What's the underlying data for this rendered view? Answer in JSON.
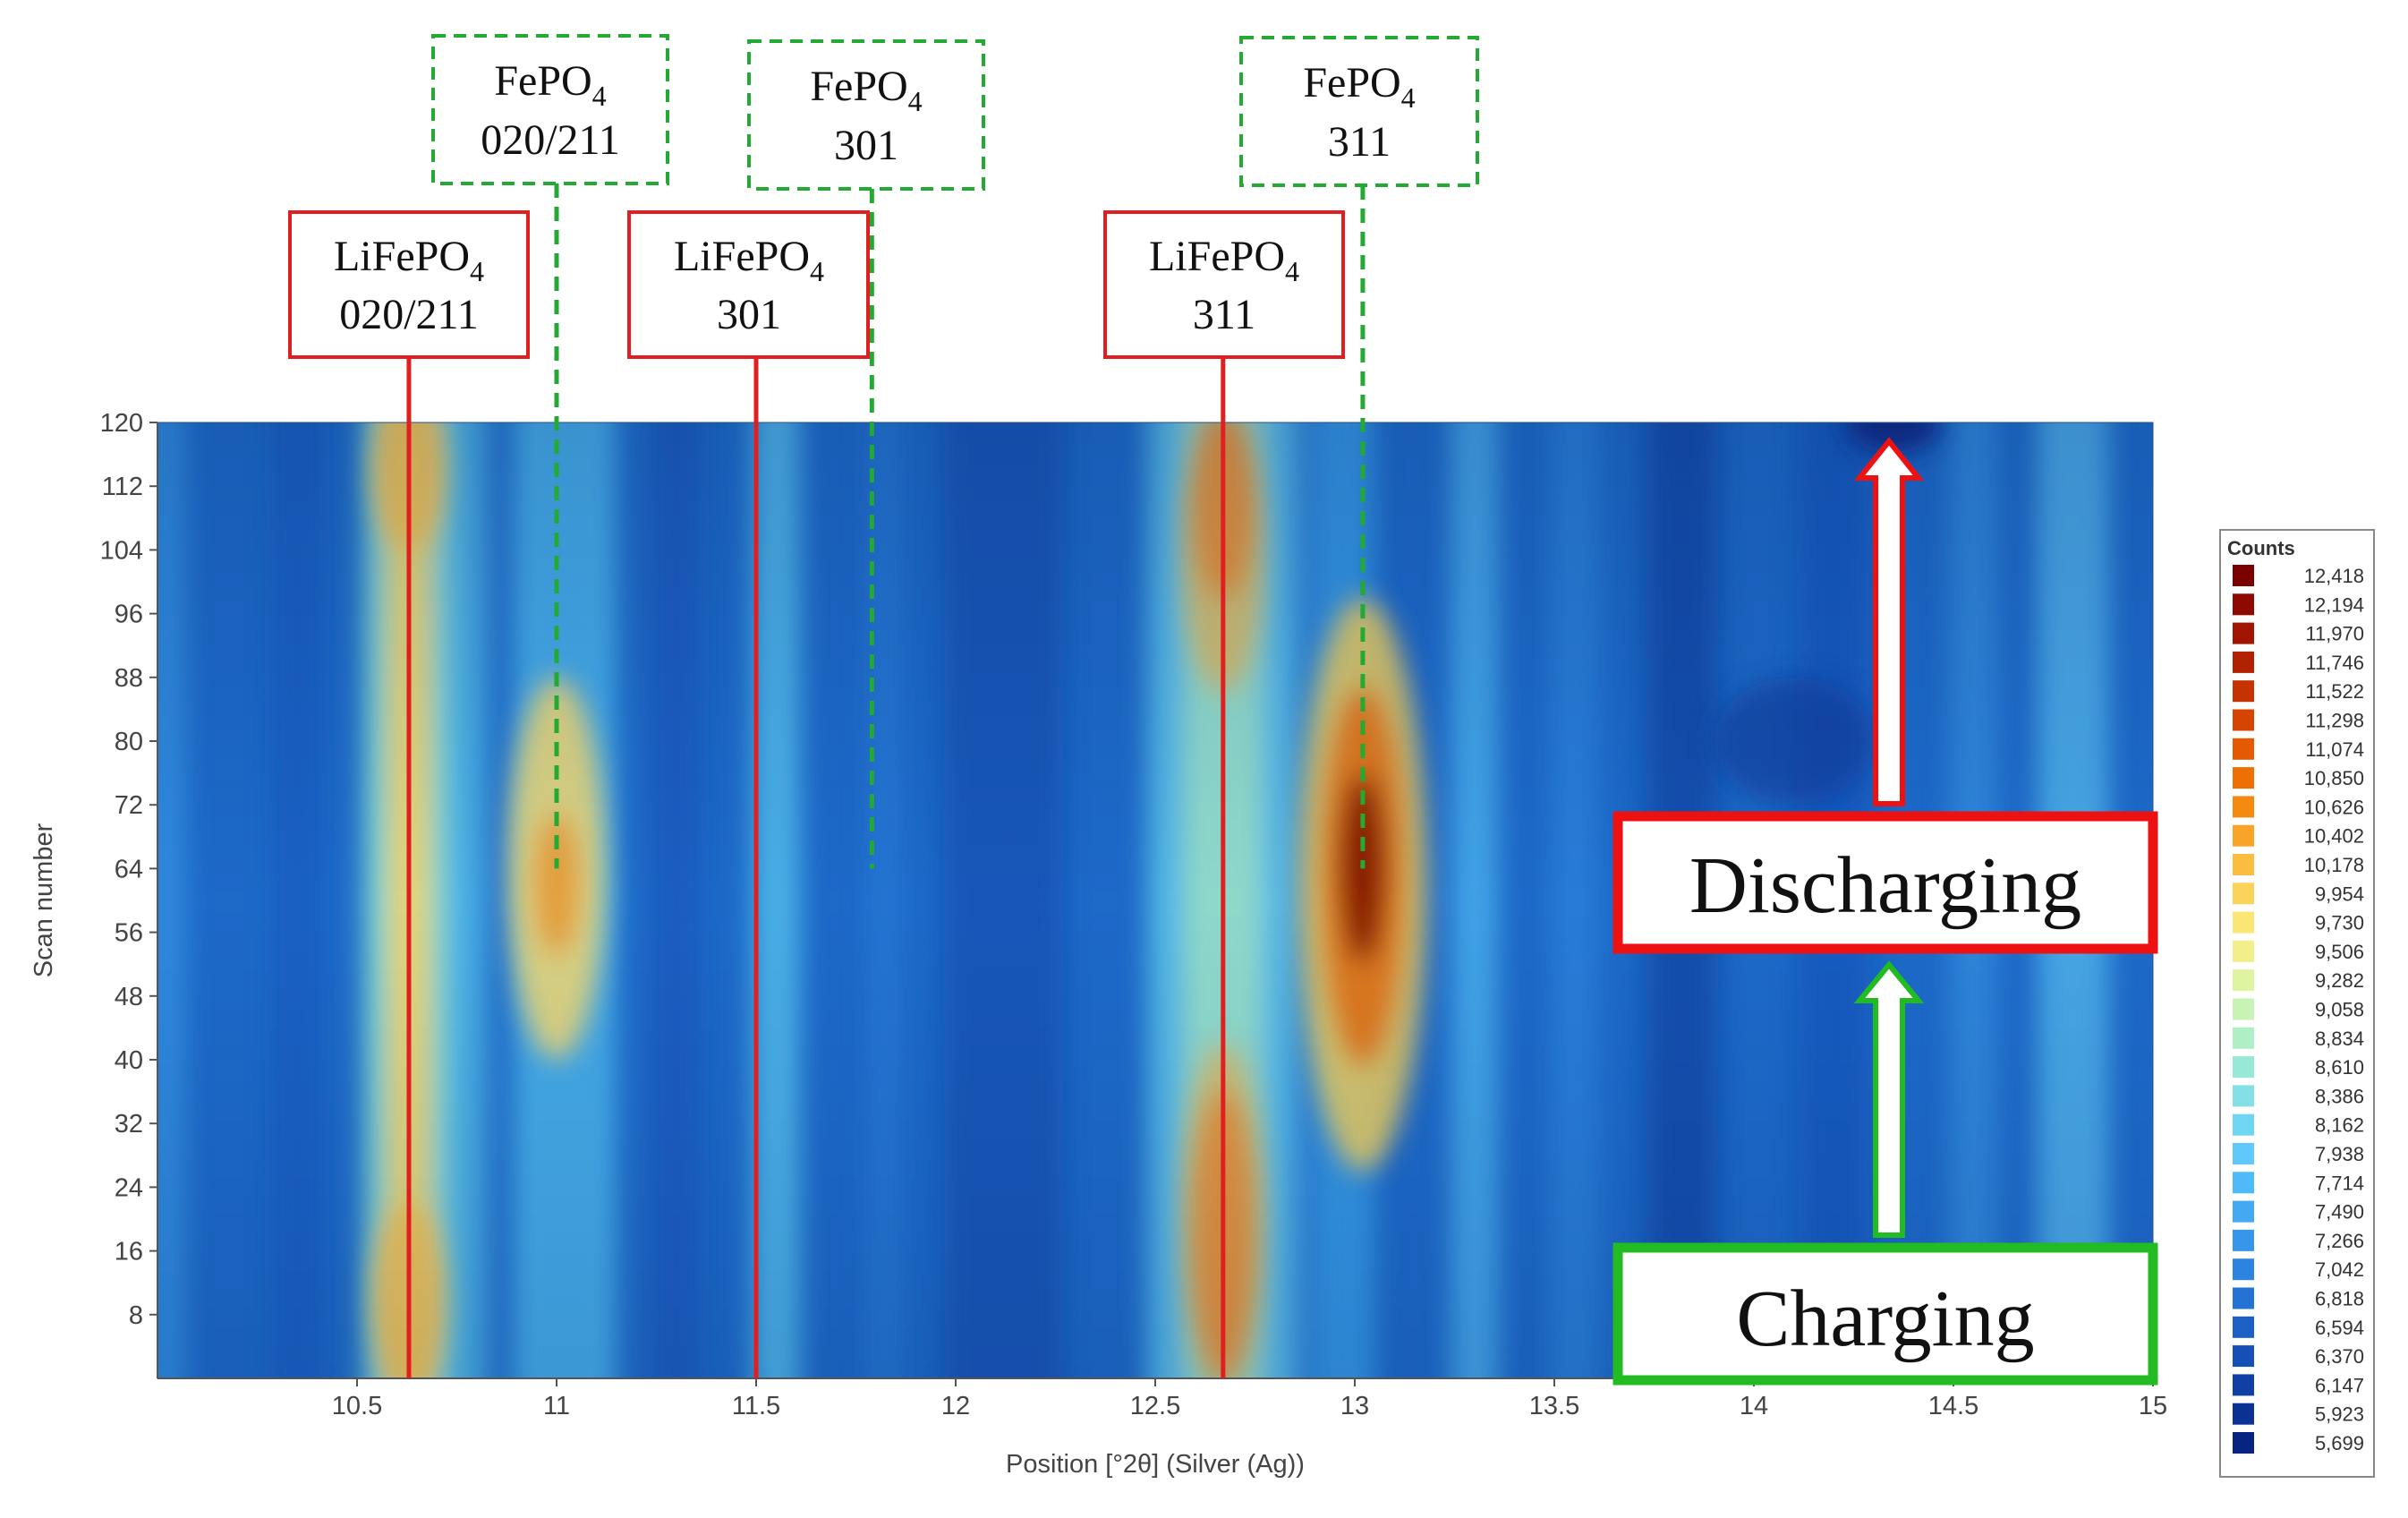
{
  "chart_data": {
    "type": "heatmap",
    "xlabel": "Position [°2θ] (Silver (Ag))",
    "ylabel": "Scan number",
    "xlim": [
      10,
      15
    ],
    "ylim": [
      0,
      120
    ],
    "x_ticks": [
      10.5,
      11,
      11.5,
      12,
      12.5,
      13,
      13.5,
      14,
      14.5,
      15
    ],
    "y_ticks": [
      8,
      16,
      24,
      32,
      40,
      48,
      56,
      64,
      72,
      80,
      88,
      96,
      104,
      112,
      120
    ],
    "colorbar": {
      "title": "Counts",
      "levels": [
        "12,418",
        "12,194",
        "11,970",
        "11,746",
        "11,522",
        "11,298",
        "11,074",
        "10,850",
        "10,626",
        "10,402",
        "10,178",
        "9,954",
        "9,730",
        "9,506",
        "9,282",
        "9,058",
        "8,834",
        "8,610",
        "8,386",
        "8,162",
        "7,938",
        "7,714",
        "7,490",
        "7,266",
        "7,042",
        "6,818",
        "6,594",
        "6,370",
        "6,147",
        "5,923",
        "5,699"
      ],
      "colors": [
        "#7a0000",
        "#8e0a00",
        "#a01500",
        "#b22200",
        "#c43300",
        "#d54500",
        "#e45a00",
        "#ee7000",
        "#f48a10",
        "#f8a428",
        "#fbbd40",
        "#fcd35a",
        "#fbe574",
        "#f2ef8a",
        "#def4a0",
        "#c8f3b4",
        "#b0eec6",
        "#98e8d6",
        "#82e0e6",
        "#6fd6f2",
        "#5ec9fa",
        "#4fbaf8",
        "#42a9f2",
        "#3696ea",
        "#2c84e0",
        "#2472d4",
        "#1c60c6",
        "#164fb6",
        "#1040a4",
        "#0b3292",
        "#072580"
      ]
    },
    "peaks": [
      {
        "phase": "LiFePO4",
        "hkl": "020/211",
        "x": 10.63
      },
      {
        "phase": "FePO4",
        "hkl": "020/211",
        "x": 11.0
      },
      {
        "phase": "LiFePO4",
        "hkl": "301",
        "x": 11.5
      },
      {
        "phase": "FePO4",
        "hkl": "301",
        "x": 11.79
      },
      {
        "phase": "LiFePO4",
        "hkl": "311",
        "x": 12.67
      },
      {
        "phase": "FePO4",
        "hkl": "311",
        "x": 13.02
      }
    ],
    "annotations": {
      "labels": [
        {
          "formula": "FePO",
          "sub": "4",
          "hkl": "020/211",
          "style": "dashed",
          "color": "#22aa33"
        },
        {
          "formula": "FePO",
          "sub": "4",
          "hkl": "301",
          "style": "dashed",
          "color": "#22aa33"
        },
        {
          "formula": "FePO",
          "sub": "4",
          "hkl": "311",
          "style": "dashed",
          "color": "#22aa33"
        },
        {
          "formula": "LiFePO",
          "sub": "4",
          "hkl": "020/211",
          "style": "solid",
          "color": "#e02020"
        },
        {
          "formula": "LiFePO",
          "sub": "4",
          "hkl": "301",
          "style": "solid",
          "color": "#e02020"
        },
        {
          "formula": "LiFePO",
          "sub": "4",
          "hkl": "311",
          "style": "solid",
          "color": "#e02020"
        }
      ],
      "charging_text": "Charging",
      "discharging_text": "Discharging",
      "charging_color": "#22bb22",
      "discharging_color": "#ee1111"
    }
  }
}
